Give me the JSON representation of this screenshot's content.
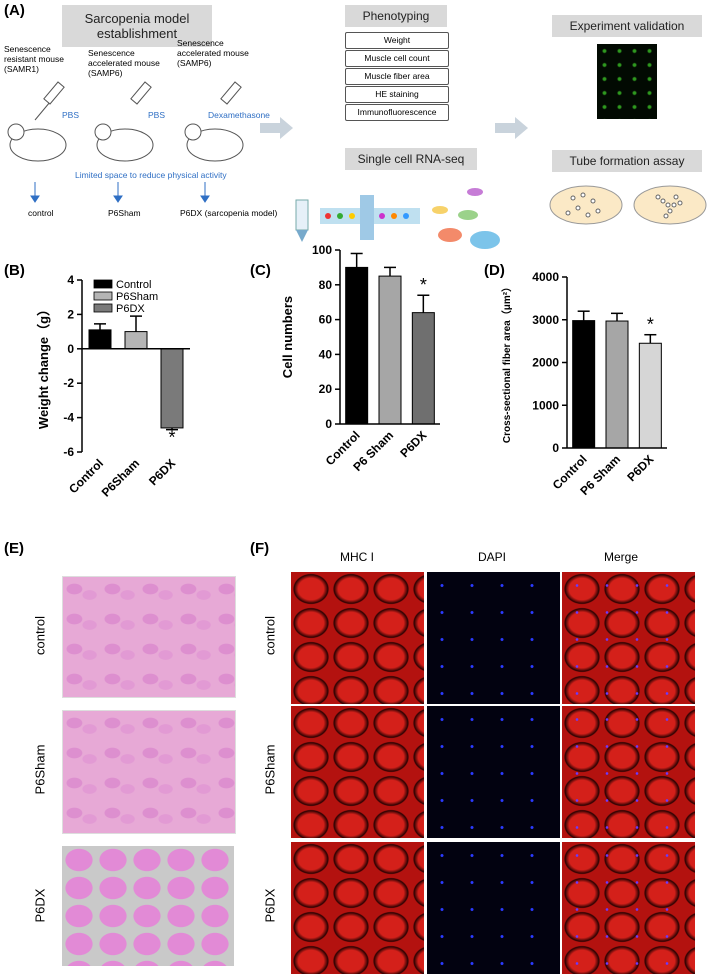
{
  "panel_labels": [
    "(A)",
    "(B)",
    "(C)",
    "(D)",
    "(E)",
    "(F)"
  ],
  "panel_a": {
    "model_title": "Sarcopenia model establishment",
    "mice": [
      {
        "name": "Senescence resistant mouse (SAMR1)",
        "treatment": "PBS",
        "group": "control"
      },
      {
        "name": "Senescence accelerated mouse (SAMP6)",
        "treatment": "PBS",
        "group": "P6Sham"
      },
      {
        "name": "Senescence accelerated mouse (SAMP6)",
        "treatment": "Dexamethasone",
        "group": "P6DX (sarcopenia model)"
      }
    ],
    "note": "Limited space to reduce physical activity",
    "phenotyping": {
      "title": "Phenotyping",
      "items": [
        "Weight",
        "Muscle cell count",
        "Muscle fiber area",
        "HE staining",
        "Immunofluorescence"
      ]
    },
    "scrna": "Single cell RNA-seq",
    "validation": "Experiment validation",
    "tube": "Tube formation assay"
  },
  "panel_e": {
    "rows": [
      "control",
      "P6Sham",
      "P6DX"
    ]
  },
  "panel_f": {
    "columns": [
      "MHC I",
      "DAPI",
      "Merge"
    ],
    "rows": [
      "control",
      "P6Sham",
      "P6DX"
    ]
  },
  "chart_data": [
    {
      "type": "bar",
      "ylabel": "Weight change（g）",
      "categories": [
        "Control",
        "P6Sham",
        "P6DX"
      ],
      "values": [
        1.1,
        1.0,
        -4.6
      ],
      "errors": [
        0.35,
        0.9,
        0.1
      ],
      "colors": [
        "#000000",
        "#b5b5b5",
        "#7a7a7a"
      ],
      "ylim": [
        -6,
        4
      ],
      "yticks": [
        -6,
        -4,
        -2,
        0,
        2,
        4
      ],
      "legend": "upper left",
      "annotations": [
        {
          "text": "*",
          "category": "P6DX"
        }
      ]
    },
    {
      "type": "bar",
      "ylabel": "Cell numbers",
      "categories": [
        "Control",
        "P6 Sham",
        "P6DX"
      ],
      "values": [
        90,
        85,
        64
      ],
      "errors": [
        8,
        5,
        10
      ],
      "colors": [
        "#000000",
        "#a6a6a6",
        "#6f6f6f"
      ],
      "ylim": [
        0,
        100
      ],
      "yticks": [
        0,
        20,
        40,
        60,
        80,
        100
      ],
      "annotations": [
        {
          "text": "*",
          "category": "P6DX"
        }
      ]
    },
    {
      "type": "bar",
      "ylabel": "Cross-sectional fiber area（μm²）",
      "categories": [
        "Control",
        "P6 Sham",
        "P6DX"
      ],
      "values": [
        2980,
        2970,
        2450
      ],
      "errors": [
        220,
        180,
        200
      ],
      "colors": [
        "#000000",
        "#a6a6a6",
        "#d6d6d6"
      ],
      "ylim": [
        0,
        4000
      ],
      "yticks": [
        0,
        1000,
        2000,
        3000,
        4000
      ],
      "annotations": [
        {
          "text": "*",
          "category": "P6DX"
        }
      ]
    }
  ]
}
